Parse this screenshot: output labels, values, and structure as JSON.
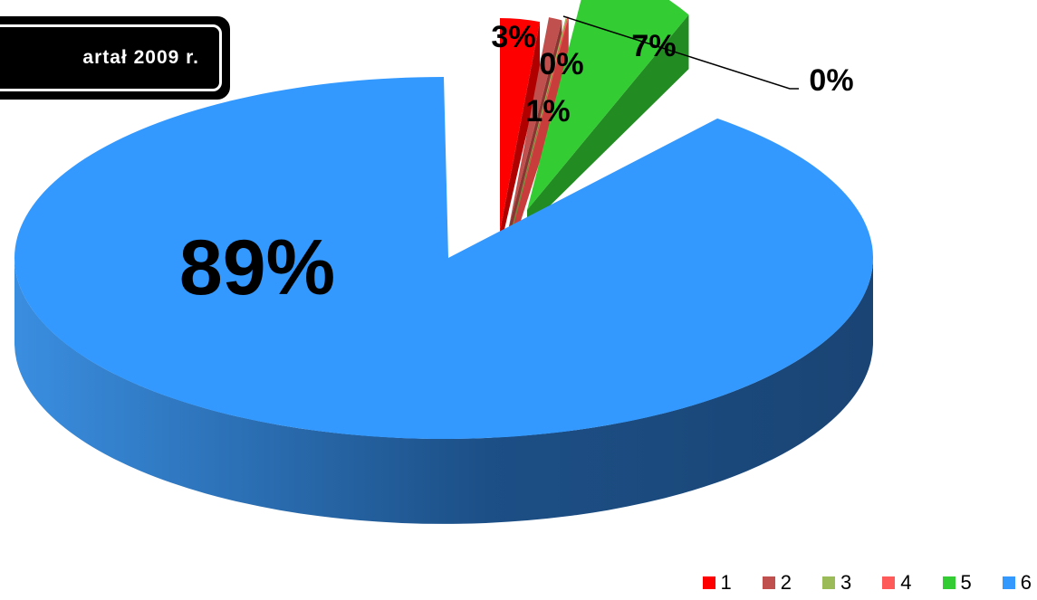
{
  "chart_data": {
    "type": "pie",
    "title": "artał 2009 r.",
    "categories": [
      "1",
      "2",
      "3",
      "4",
      "5",
      "6"
    ],
    "values": [
      3,
      1,
      0,
      0,
      7,
      89
    ],
    "value_labels": [
      "3%",
      "1%",
      "0%",
      "0%",
      "7%",
      "89%"
    ],
    "colors": [
      "#ff0000",
      "#c0504d",
      "#9bbb59",
      "#ff5a5a",
      "#33cc33",
      "#3399ff"
    ],
    "legend_position": "bottom-right",
    "exploded": true,
    "style": "3d"
  }
}
